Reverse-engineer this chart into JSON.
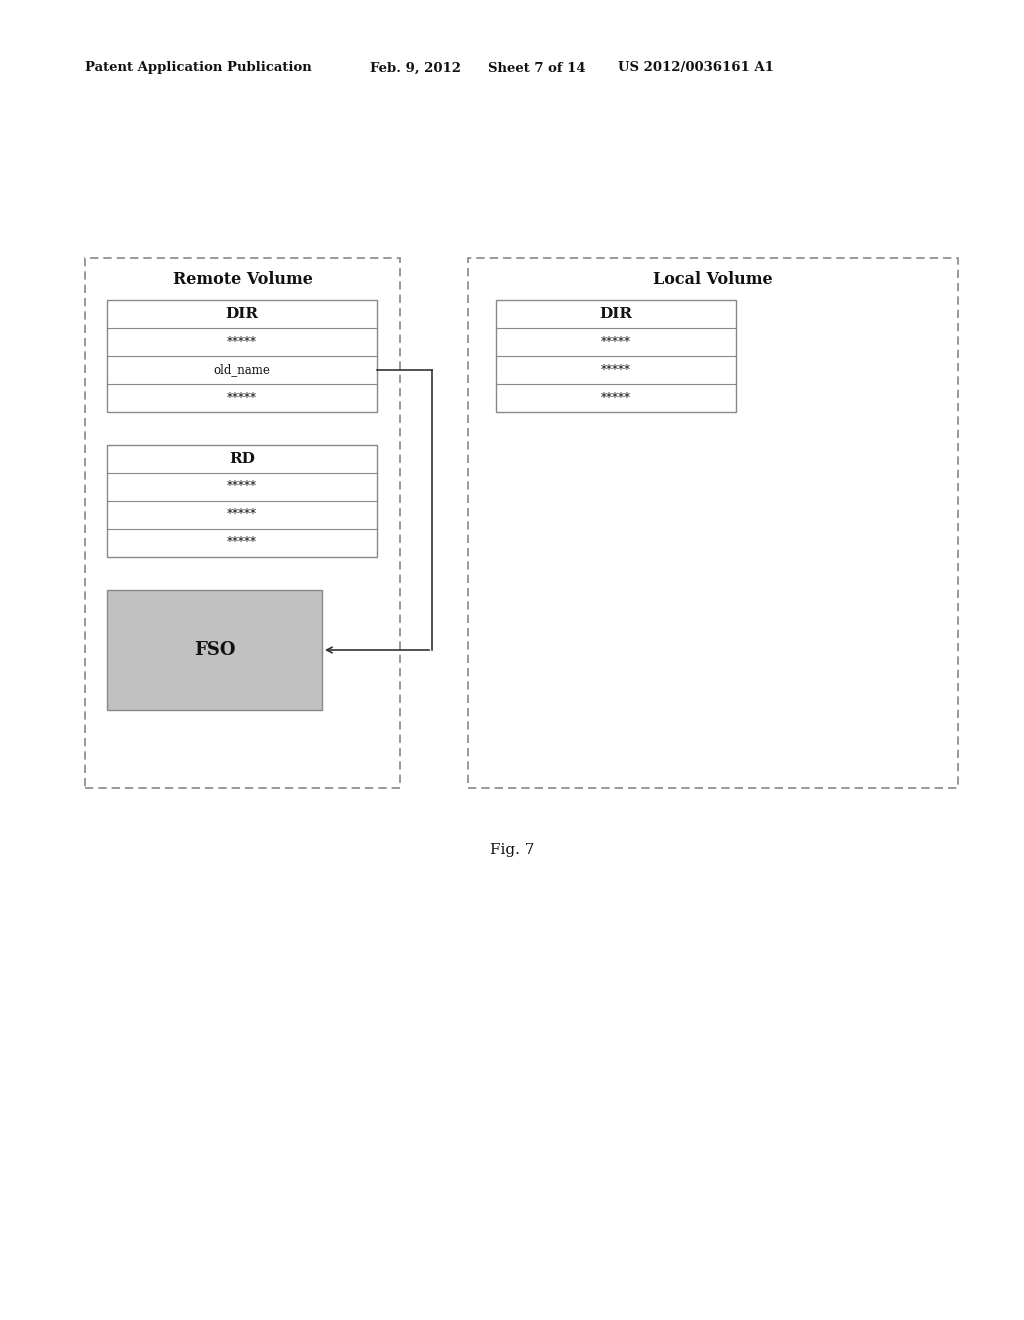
{
  "bg_color": "#ffffff",
  "header_text": "Patent Application Publication",
  "header_date": "Feb. 9, 2012",
  "header_sheet": "Sheet 7 of 14",
  "header_patent": "US 2012/0036161 A1",
  "fig_label": "Fig. 7",
  "remote_volume_title": "Remote Volume",
  "local_volume_title": "Local Volume",
  "text_color": "#111111",
  "border_color": "#666666",
  "fso_fill": "#c0c0c0",
  "arrow_color": "#333333",
  "dot_rows_remote_dir": [
    "*****",
    "old_name",
    "*****"
  ],
  "dot_rows_local_dir": [
    "*****",
    "*****",
    "*****"
  ],
  "dot_rows_rd": [
    "*****",
    "*****",
    "*****"
  ]
}
